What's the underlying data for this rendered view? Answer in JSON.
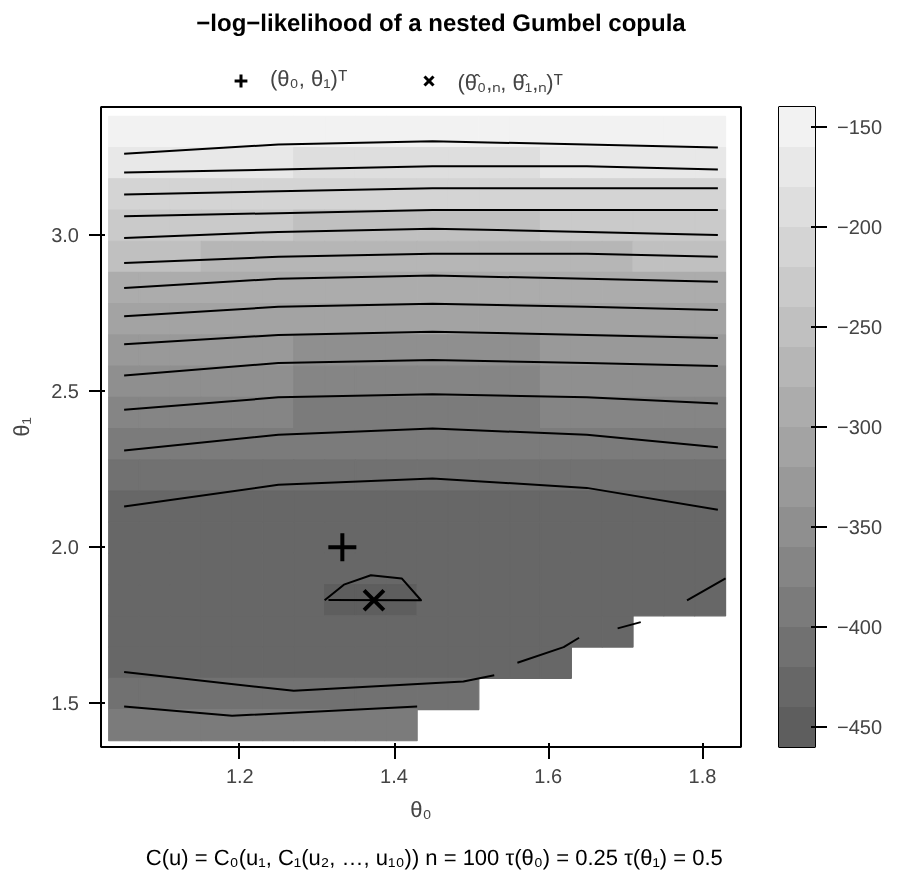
{
  "chart_data": {
    "type": "heatmap",
    "title": "−log−likelihood of a nested Gumbel copula",
    "xlabel": "θ₀",
    "ylabel": "θ₁",
    "annotations": [
      "C(u) = C₀(u₁, C₁(u₂, …, u₁₀))     n = 100     τ(θ₀) = 0.25     τ(θ₁) = 0.5"
    ],
    "legend": "top",
    "xlim": [
      1.02,
      1.85
    ],
    "ylim": [
      1.36,
      3.41
    ],
    "xticks": [
      1.2,
      1.4,
      1.6,
      1.8
    ],
    "yticks": [
      1.5,
      {
        "value": 2.0,
        "label": "2.0"
      },
      2.5,
      {
        "value": 3.0,
        "label": "3.0"
      }
    ],
    "clim": [
      -460,
      -140
    ],
    "cticks": [
      {
        "value": -450,
        "label": "−450"
      },
      {
        "value": -400,
        "label": "−400"
      },
      {
        "value": -350,
        "label": "−350"
      },
      {
        "value": -300,
        "label": "−300"
      },
      {
        "value": -250,
        "label": "−250"
      },
      {
        "value": -200,
        "label": "−200"
      },
      {
        "value": -150,
        "label": "−150"
      }
    ],
    "x": [
      1.05,
      1.09,
      1.13,
      1.17,
      1.21,
      1.25,
      1.29,
      1.33,
      1.37,
      1.41,
      1.45,
      1.49,
      1.53,
      1.57,
      1.61,
      1.65,
      1.69,
      1.73,
      1.77,
      1.81
    ],
    "y": [
      3.33,
      3.23,
      3.13,
      3.03,
      2.93,
      2.83,
      2.73,
      2.63,
      2.53,
      2.43,
      2.33,
      2.23,
      2.13,
      2.03,
      1.93,
      1.83,
      1.73,
      1.63,
      1.53,
      1.43
    ],
    "cells": [
      [
        -145,
        -145,
        -145,
        -150,
        -150,
        -150,
        -155,
        -155,
        -155,
        -155,
        -155,
        -155,
        -155,
        -155,
        -150,
        -150,
        -150,
        -145,
        -145,
        -145
      ],
      [
        -175,
        -175,
        -175,
        -180,
        -180,
        -180,
        -185,
        -185,
        -185,
        -185,
        -185,
        -185,
        -185,
        -185,
        -180,
        -180,
        -180,
        -175,
        -175,
        -175
      ],
      [
        -205,
        -205,
        -205,
        -210,
        -210,
        -210,
        -215,
        -215,
        -215,
        -215,
        -215,
        -215,
        -215,
        -215,
        -210,
        -210,
        -210,
        -205,
        -205,
        -205
      ],
      [
        -235,
        -235,
        -235,
        -240,
        -240,
        -240,
        -245,
        -245,
        -245,
        -245,
        -245,
        -245,
        -245,
        -245,
        -240,
        -240,
        -240,
        -235,
        -235,
        -235
      ],
      [
        -260,
        -260,
        -260,
        -265,
        -265,
        -265,
        -270,
        -270,
        -270,
        -270,
        -270,
        -270,
        -270,
        -270,
        -265,
        -265,
        -265,
        -260,
        -260,
        -260
      ],
      [
        -290,
        -290,
        -290,
        -295,
        -295,
        -295,
        -300,
        -300,
        -300,
        -300,
        -300,
        -300,
        -300,
        -300,
        -295,
        -295,
        -295,
        -290,
        -290,
        -290
      ],
      [
        -310,
        -310,
        -310,
        -315,
        -315,
        -315,
        -320,
        -320,
        -320,
        -320,
        -320,
        -320,
        -320,
        -320,
        -315,
        -315,
        -315,
        -310,
        -310,
        -310
      ],
      [
        -335,
        -335,
        -335,
        -340,
        -340,
        -340,
        -345,
        -345,
        -345,
        -345,
        -345,
        -345,
        -345,
        -345,
        -340,
        -340,
        -340,
        -335,
        -335,
        -335
      ],
      [
        -355,
        -355,
        -355,
        -360,
        -360,
        -360,
        -365,
        -365,
        -365,
        -365,
        -365,
        -365,
        -365,
        -365,
        -360,
        -360,
        -360,
        -355,
        -355,
        -355
      ],
      [
        -375,
        -375,
        -375,
        -380,
        -380,
        -380,
        -385,
        -385,
        -385,
        -385,
        -385,
        -385,
        -385,
        -385,
        -380,
        -380,
        -380,
        -375,
        -375,
        -375
      ],
      [
        -390,
        -390,
        -390,
        -395,
        -395,
        -395,
        -400,
        -400,
        -400,
        -400,
        -400,
        -400,
        -400,
        -400,
        -395,
        -395,
        -395,
        -390,
        -390,
        -390
      ],
      [
        -415,
        -415,
        -415,
        -415,
        -415,
        -415,
        -415,
        -415,
        -415,
        -415,
        -415,
        -415,
        -415,
        -415,
        -415,
        -415,
        -415,
        -415,
        -415,
        -415
      ],
      [
        -425,
        -425,
        -425,
        -425,
        -425,
        -425,
        -425,
        -425,
        -425,
        -425,
        -425,
        -425,
        -425,
        -425,
        -425,
        -425,
        -425,
        -425,
        -425,
        -425
      ],
      [
        -435,
        -435,
        -435,
        -435,
        -435,
        -435,
        -435,
        -435,
        -435,
        -435,
        -435,
        -435,
        -435,
        -435,
        -435,
        -435,
        -435,
        -435,
        -435,
        -435
      ],
      [
        -440,
        -440,
        -440,
        -440,
        -440,
        -440,
        -440,
        -440,
        -440,
        -440,
        -440,
        -440,
        -440,
        -440,
        -440,
        -440,
        -440,
        -440,
        -440,
        -440
      ],
      [
        -440,
        -440,
        -440,
        -440,
        -440,
        -440,
        -440,
        -455,
        -455,
        -455,
        -440,
        -440,
        -440,
        -440,
        -440,
        -440,
        -440,
        -440,
        -440,
        -440
      ],
      [
        -440,
        -440,
        -440,
        -440,
        -440,
        -440,
        -440,
        -440,
        -440,
        -440,
        -440,
        -440,
        -440,
        -440,
        -440,
        -440,
        -440,
        null,
        null,
        null
      ],
      [
        -430,
        -430,
        -430,
        -430,
        -430,
        -430,
        -430,
        -430,
        -430,
        -430,
        -430,
        -430,
        -430,
        -430,
        -430,
        null,
        null,
        null,
        null,
        null
      ],
      [
        -415,
        -415,
        -415,
        -415,
        -415,
        -415,
        -415,
        -415,
        -415,
        -415,
        -415,
        -415,
        null,
        null,
        null,
        null,
        null,
        null,
        null,
        null
      ],
      [
        -395,
        -395,
        -395,
        -395,
        -395,
        -395,
        -395,
        -395,
        -395,
        -395,
        null,
        null,
        null,
        null,
        null,
        null,
        null,
        null,
        null,
        null
      ]
    ],
    "series": [
      {
        "type": "line",
        "color": "#000000",
        "x": [
          1.05,
          1.25,
          1.45,
          1.65,
          1.82
        ],
        "values": [
          3.26,
          3.29,
          3.3,
          3.29,
          3.28
        ]
      },
      {
        "type": "line",
        "color": "#000000",
        "x": [
          1.05,
          1.25,
          1.45,
          1.65,
          1.82
        ],
        "values": [
          3.2,
          3.21,
          3.22,
          3.22,
          3.21
        ]
      },
      {
        "type": "line",
        "color": "#000000",
        "x": [
          1.05,
          1.25,
          1.45,
          1.65,
          1.82
        ],
        "values": [
          3.13,
          3.14,
          3.15,
          3.15,
          3.15
        ]
      },
      {
        "type": "line",
        "color": "#000000",
        "x": [
          1.05,
          1.25,
          1.45,
          1.65,
          1.82
        ],
        "values": [
          3.06,
          3.07,
          3.08,
          3.08,
          3.08
        ]
      },
      {
        "type": "line",
        "color": "#000000",
        "x": [
          1.05,
          1.25,
          1.45,
          1.65,
          1.82
        ],
        "values": [
          2.99,
          3.01,
          3.02,
          3.01,
          3.0
        ]
      },
      {
        "type": "line",
        "color": "#000000",
        "x": [
          1.05,
          1.25,
          1.45,
          1.65,
          1.82
        ],
        "values": [
          2.91,
          2.93,
          2.94,
          2.94,
          2.93
        ]
      },
      {
        "type": "line",
        "color": "#000000",
        "x": [
          1.05,
          1.25,
          1.45,
          1.65,
          1.82
        ],
        "values": [
          2.83,
          2.86,
          2.87,
          2.86,
          2.85
        ]
      },
      {
        "type": "line",
        "color": "#000000",
        "x": [
          1.05,
          1.25,
          1.45,
          1.65,
          1.82
        ],
        "values": [
          2.74,
          2.77,
          2.78,
          2.77,
          2.76
        ]
      },
      {
        "type": "line",
        "color": "#000000",
        "x": [
          1.05,
          1.25,
          1.45,
          1.65,
          1.82
        ],
        "values": [
          2.65,
          2.68,
          2.69,
          2.68,
          2.67
        ]
      },
      {
        "type": "line",
        "color": "#000000",
        "x": [
          1.05,
          1.25,
          1.45,
          1.65,
          1.82
        ],
        "values": [
          2.55,
          2.59,
          2.6,
          2.59,
          2.58
        ]
      },
      {
        "type": "line",
        "color": "#000000",
        "x": [
          1.05,
          1.25,
          1.45,
          1.65,
          1.82
        ],
        "values": [
          2.44,
          2.48,
          2.49,
          2.48,
          2.46
        ]
      },
      {
        "type": "line",
        "color": "#000000",
        "x": [
          1.05,
          1.25,
          1.45,
          1.65,
          1.82
        ],
        "values": [
          2.31,
          2.36,
          2.38,
          2.36,
          2.32
        ]
      },
      {
        "type": "line",
        "color": "#000000",
        "x": [
          1.05,
          1.25,
          1.45,
          1.65,
          1.82
        ],
        "values": [
          2.13,
          2.2,
          2.22,
          2.19,
          2.12
        ]
      },
      {
        "type": "line",
        "color": "#000000",
        "x": [
          1.31,
          1.335,
          1.37,
          1.41,
          1.435,
          1.315
        ],
        "values": [
          1.83,
          1.88,
          1.91,
          1.9,
          1.83,
          1.831
        ]
      },
      {
        "type": "line",
        "color": "#000000",
        "x": [
          1.05,
          1.27,
          1.49,
          1.53
        ],
        "values": [
          1.6,
          1.54,
          1.57,
          1.59
        ]
      },
      {
        "type": "line",
        "color": "#000000",
        "x": [
          1.56,
          1.62,
          1.64
        ],
        "values": [
          1.63,
          1.68,
          1.71
        ]
      },
      {
        "type": "line",
        "color": "#000000",
        "x": [
          1.69,
          1.72
        ],
        "values": [
          1.74,
          1.76
        ]
      },
      {
        "type": "line",
        "color": "#000000",
        "x": [
          1.05,
          1.19,
          1.43
        ],
        "values": [
          1.49,
          1.46,
          1.49
        ]
      },
      {
        "type": "line",
        "color": "#000000",
        "x": [
          1.78,
          1.83
        ],
        "values": [
          1.83,
          1.9
        ]
      },
      {
        "type": "scatter",
        "marker": "cross",
        "name": "(θ₀, θ₁)ᵀ",
        "color": "#000000",
        "x": [
          1.333
        ],
        "values": [
          2.0
        ]
      },
      {
        "type": "scatter",
        "marker": "x",
        "name": "(θ̂₀,ₙ, θ̂₁,ₙ)ᵀ",
        "color": "#000000",
        "x": [
          1.374
        ],
        "values": [
          1.83
        ]
      }
    ]
  }
}
